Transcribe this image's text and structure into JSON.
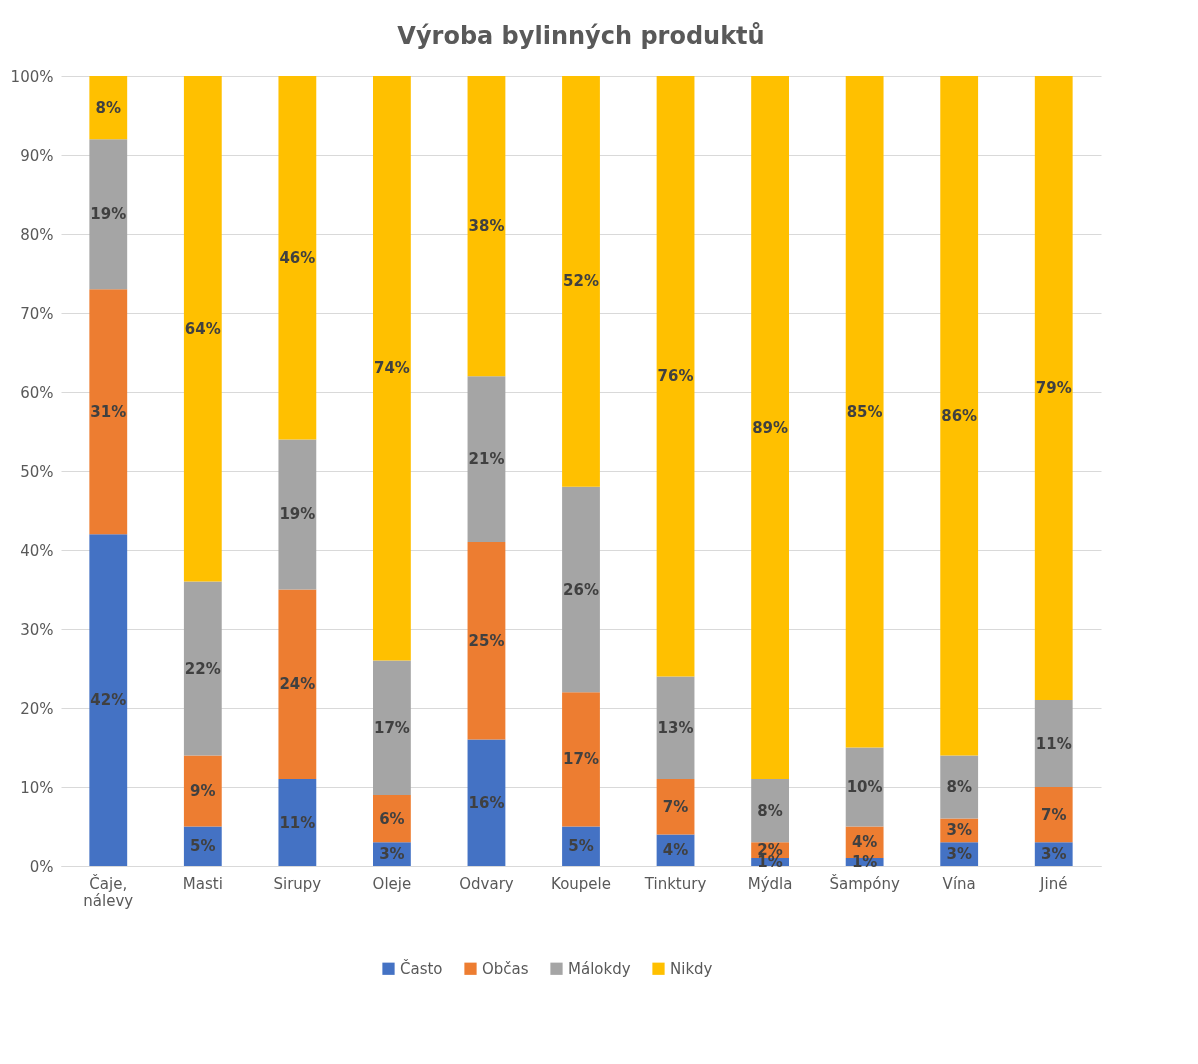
{
  "chart_data": {
    "type": "bar",
    "title": "Výroba bylinných produktů",
    "stacked": true,
    "categories": [
      "Čaje, nálevy",
      "Masti",
      "Sirupy",
      "Oleje",
      "Odvary",
      "Koupele",
      "Tinktury",
      "Mýdla",
      "Šampóny",
      "Vína",
      "Jiné"
    ],
    "series": [
      {
        "name": "Často",
        "color": "#4472c4",
        "values": [
          42,
          5,
          11,
          3,
          16,
          5,
          4,
          1,
          1,
          3,
          3
        ],
        "value_labels": [
          "42%",
          "5%",
          "11%",
          "3%",
          "16%",
          "5%",
          "4%",
          "1%",
          "1%",
          "3%",
          "3%"
        ]
      },
      {
        "name": "Občas",
        "color": "#ed7d31",
        "values": [
          31,
          9,
          24,
          6,
          25,
          17,
          7,
          2,
          4,
          3,
          7
        ],
        "value_labels": [
          "31%",
          "9%",
          "24%",
          "6%",
          "25%",
          "17%",
          "7%",
          "2%",
          "4%",
          "3%",
          "7%"
        ]
      },
      {
        "name": "Málokdy",
        "color": "#a5a5a5",
        "values": [
          19,
          22,
          19,
          17,
          21,
          26,
          13,
          8,
          10,
          8,
          11
        ],
        "value_labels": [
          "19%",
          "22%",
          "19%",
          "17%",
          "21%",
          "26%",
          "13%",
          "8%",
          "10%",
          "8%",
          "11%"
        ]
      },
      {
        "name": "Nikdy",
        "color": "#ffc000",
        "values": [
          8,
          64,
          46,
          74,
          38,
          52,
          76,
          89,
          85,
          86,
          79
        ],
        "value_labels": [
          "8%",
          "64%",
          "46%",
          "74%",
          "38%",
          "52%",
          "76%",
          "89%",
          "85%",
          "86%",
          "79%"
        ]
      }
    ],
    "ylim": [
      0,
      100
    ],
    "yticks": [
      {
        "value": 0,
        "label": "0%"
      },
      {
        "value": 10,
        "label": "10%"
      },
      {
        "value": 20,
        "label": "20%"
      },
      {
        "value": 30,
        "label": "30%"
      },
      {
        "value": 40,
        "label": "40%"
      },
      {
        "value": 50,
        "label": "50%"
      },
      {
        "value": 60,
        "label": "60%"
      },
      {
        "value": 70,
        "label": "70%"
      },
      {
        "value": 80,
        "label": "80%"
      },
      {
        "value": 90,
        "label": "90%"
      },
      {
        "value": 100,
        "label": "100%"
      }
    ],
    "grid": "y",
    "legend": "bottom"
  }
}
